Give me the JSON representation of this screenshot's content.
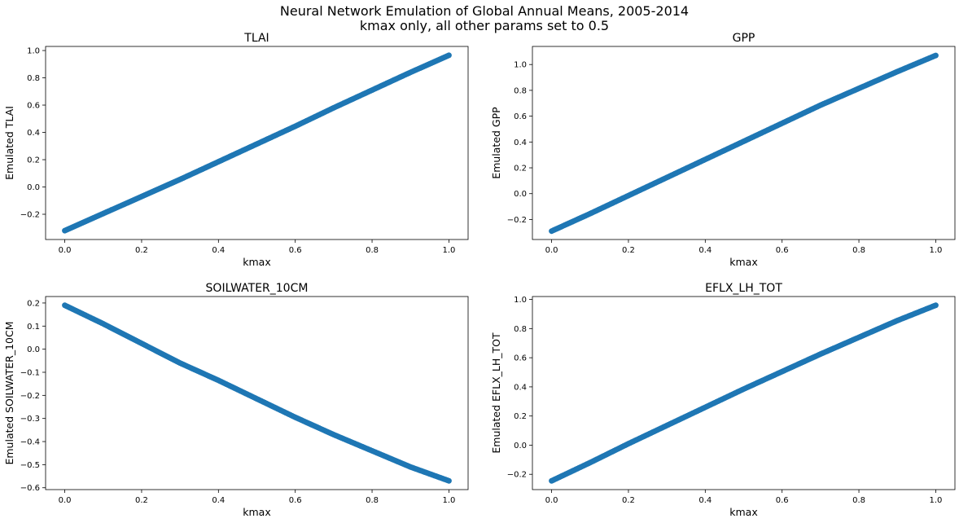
{
  "figure": {
    "title_line1": "Neural Network Emulation of Global Annual Means, 2005-2014",
    "title_line2": "kmax only, all other params set to 0.5"
  },
  "colors": {
    "points": "#1f77b4",
    "axes": "#000000",
    "background": "#ffffff"
  },
  "chart_data": [
    {
      "type": "scatter",
      "title": "TLAI",
      "xlabel": "kmax",
      "ylabel": "Emulated TLAI",
      "xlim": [
        -0.05,
        1.05
      ],
      "ylim": [
        -0.385,
        1.03
      ],
      "xticks": [
        "0.0",
        "0.2",
        "0.4",
        "0.6",
        "0.8",
        "1.0"
      ],
      "yticks": [
        "−0.2",
        "0.0",
        "0.2",
        "0.4",
        "0.6",
        "0.8",
        "1.0"
      ],
      "grid": false,
      "series": [
        {
          "x": [
            0.0,
            0.1,
            0.2,
            0.3,
            0.4,
            0.5,
            0.6,
            0.7,
            0.8,
            0.9,
            1.0
          ],
          "y": [
            -0.32,
            -0.195,
            -0.07,
            0.055,
            0.185,
            0.315,
            0.445,
            0.58,
            0.71,
            0.84,
            0.965
          ]
        }
      ]
    },
    {
      "type": "scatter",
      "title": "GPP",
      "xlabel": "kmax",
      "ylabel": "Emulated GPP",
      "xlim": [
        -0.05,
        1.05
      ],
      "ylim": [
        -0.355,
        1.14
      ],
      "xticks": [
        "0.0",
        "0.2",
        "0.4",
        "0.6",
        "0.8",
        "1.0"
      ],
      "yticks": [
        "−0.2",
        "0.0",
        "0.2",
        "0.4",
        "0.6",
        "0.8",
        "1.0"
      ],
      "grid": false,
      "series": [
        {
          "x": [
            0.0,
            0.1,
            0.2,
            0.3,
            0.4,
            0.5,
            0.6,
            0.7,
            0.8,
            0.9,
            1.0
          ],
          "y": [
            -0.29,
            -0.155,
            -0.015,
            0.125,
            0.265,
            0.405,
            0.545,
            0.685,
            0.815,
            0.945,
            1.07
          ]
        }
      ]
    },
    {
      "type": "scatter",
      "title": "SOILWATER_10CM",
      "xlabel": "kmax",
      "ylabel": "Emulated SOILWATER_10CM",
      "xlim": [
        -0.05,
        1.05
      ],
      "ylim": [
        -0.608,
        0.228
      ],
      "xticks": [
        "0.0",
        "0.2",
        "0.4",
        "0.6",
        "0.8",
        "1.0"
      ],
      "yticks": [
        "−0.6",
        "−0.5",
        "−0.4",
        "−0.3",
        "−0.2",
        "−0.1",
        "0.0",
        "0.1",
        "0.2"
      ],
      "grid": false,
      "series": [
        {
          "x": [
            0.0,
            0.1,
            0.2,
            0.3,
            0.4,
            0.5,
            0.6,
            0.7,
            0.8,
            0.9,
            1.0
          ],
          "y": [
            0.19,
            0.11,
            0.025,
            -0.06,
            -0.135,
            -0.215,
            -0.295,
            -0.37,
            -0.44,
            -0.51,
            -0.57
          ]
        }
      ]
    },
    {
      "type": "scatter",
      "title": "EFLX_LH_TOT",
      "xlabel": "kmax",
      "ylabel": "Emulated EFLX_LH_TOT",
      "xlim": [
        -0.05,
        1.05
      ],
      "ylim": [
        -0.305,
        1.02
      ],
      "xticks": [
        "0.0",
        "0.2",
        "0.4",
        "0.6",
        "0.8",
        "1.0"
      ],
      "yticks": [
        "−0.2",
        "0.0",
        "0.2",
        "0.4",
        "0.6",
        "0.8",
        "1.0"
      ],
      "grid": false,
      "series": [
        {
          "x": [
            0.0,
            0.1,
            0.2,
            0.3,
            0.4,
            0.5,
            0.6,
            0.7,
            0.8,
            0.9,
            1.0
          ],
          "y": [
            -0.245,
            -0.12,
            0.01,
            0.135,
            0.26,
            0.385,
            0.505,
            0.625,
            0.74,
            0.855,
            0.96
          ]
        }
      ]
    }
  ]
}
